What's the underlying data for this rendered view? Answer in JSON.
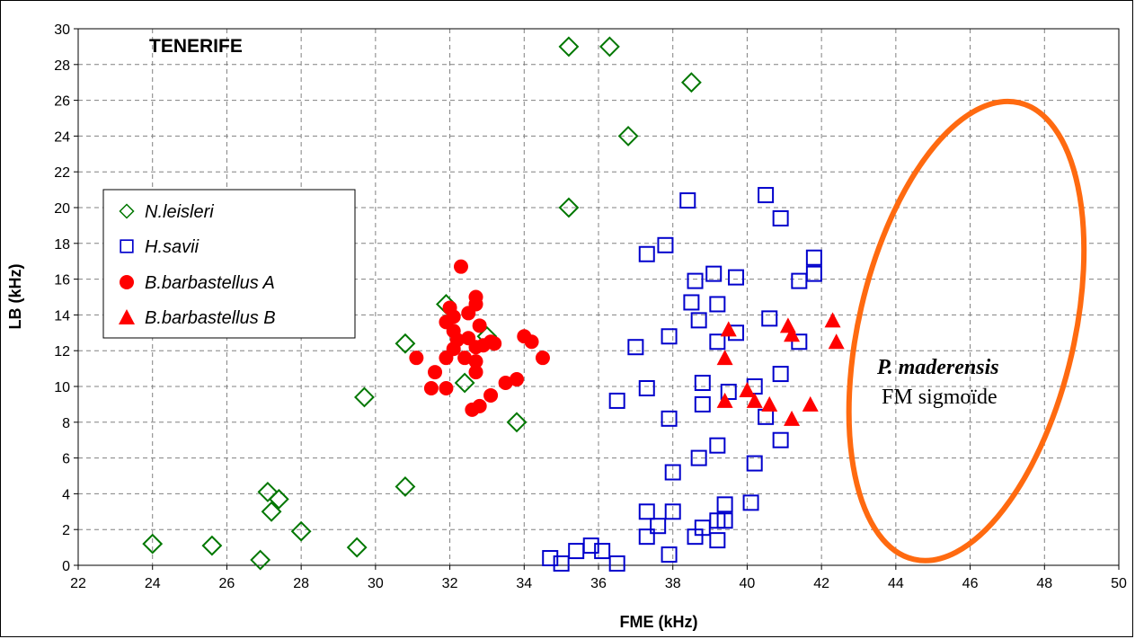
{
  "chart_data": {
    "type": "scatter",
    "title": "TENERIFE",
    "xlabel": "FME (kHz)",
    "ylabel": "LB (kHz)",
    "xlim": [
      22,
      50
    ],
    "ylim": [
      0,
      30
    ],
    "x_ticks": [
      22,
      24,
      26,
      28,
      30,
      32,
      34,
      36,
      38,
      40,
      42,
      44,
      46,
      48,
      50
    ],
    "y_ticks": [
      0,
      2,
      4,
      6,
      8,
      10,
      12,
      14,
      16,
      18,
      20,
      22,
      24,
      26,
      28,
      30
    ],
    "grid": true,
    "legend_position": "left",
    "series": [
      {
        "name": "N.leisleri",
        "marker": "diamond-open",
        "color": "#007700",
        "points": [
          [
            24.0,
            1.2
          ],
          [
            25.6,
            1.1
          ],
          [
            26.9,
            0.3
          ],
          [
            27.1,
            4.1
          ],
          [
            27.2,
            3.0
          ],
          [
            27.4,
            3.7
          ],
          [
            28.0,
            1.9
          ],
          [
            29.5,
            1.0
          ],
          [
            29.7,
            9.4
          ],
          [
            30.8,
            12.4
          ],
          [
            30.8,
            4.4
          ],
          [
            31.9,
            14.6
          ],
          [
            32.4,
            10.2
          ],
          [
            33.8,
            8.0
          ],
          [
            35.2,
            29.0
          ],
          [
            36.3,
            29.0
          ],
          [
            38.5,
            27.0
          ],
          [
            36.8,
            24.0
          ],
          [
            35.2,
            20.0
          ],
          [
            33.0,
            12.8
          ]
        ]
      },
      {
        "name": "H.savii",
        "marker": "square-open",
        "color": "#0000cc",
        "points": [
          [
            34.7,
            0.4
          ],
          [
            35.0,
            0.1
          ],
          [
            35.4,
            0.8
          ],
          [
            35.8,
            1.1
          ],
          [
            36.1,
            0.8
          ],
          [
            36.5,
            0.1
          ],
          [
            36.5,
            9.2
          ],
          [
            37.0,
            12.2
          ],
          [
            37.3,
            17.4
          ],
          [
            37.3,
            9.9
          ],
          [
            37.3,
            3.0
          ],
          [
            37.3,
            1.6
          ],
          [
            37.6,
            2.2
          ],
          [
            37.8,
            17.9
          ],
          [
            37.9,
            12.8
          ],
          [
            37.9,
            8.2
          ],
          [
            37.9,
            0.6
          ],
          [
            38.0,
            5.2
          ],
          [
            38.0,
            3.0
          ],
          [
            38.4,
            20.4
          ],
          [
            38.5,
            14.7
          ],
          [
            38.6,
            15.9
          ],
          [
            38.7,
            13.7
          ],
          [
            38.7,
            6.0
          ],
          [
            38.6,
            1.6
          ],
          [
            38.8,
            10.2
          ],
          [
            38.8,
            9.0
          ],
          [
            38.8,
            2.1
          ],
          [
            39.1,
            16.3
          ],
          [
            39.2,
            14.6
          ],
          [
            39.2,
            12.5
          ],
          [
            39.2,
            6.7
          ],
          [
            39.2,
            2.5
          ],
          [
            39.2,
            1.4
          ],
          [
            39.4,
            3.4
          ],
          [
            39.4,
            2.5
          ],
          [
            39.5,
            9.7
          ],
          [
            39.7,
            16.1
          ],
          [
            39.7,
            13.0
          ],
          [
            40.1,
            3.5
          ],
          [
            40.2,
            10.0
          ],
          [
            40.2,
            5.7
          ],
          [
            40.5,
            20.7
          ],
          [
            40.5,
            8.3
          ],
          [
            40.6,
            13.8
          ],
          [
            40.9,
            19.4
          ],
          [
            40.9,
            10.7
          ],
          [
            40.9,
            7.0
          ],
          [
            41.4,
            15.9
          ],
          [
            41.4,
            12.5
          ],
          [
            41.8,
            17.2
          ],
          [
            41.8,
            16.3
          ]
        ]
      },
      {
        "name": "B.barbastellus A",
        "marker": "circle-filled",
        "color": "#ff0000",
        "points": [
          [
            31.1,
            11.6
          ],
          [
            31.5,
            9.9
          ],
          [
            31.6,
            10.8
          ],
          [
            31.9,
            13.6
          ],
          [
            31.9,
            11.6
          ],
          [
            31.9,
            9.9
          ],
          [
            32.0,
            14.4
          ],
          [
            32.1,
            13.9
          ],
          [
            32.1,
            13.1
          ],
          [
            32.1,
            12.1
          ],
          [
            32.2,
            12.6
          ],
          [
            32.3,
            16.7
          ],
          [
            32.4,
            11.6
          ],
          [
            32.5,
            12.7
          ],
          [
            32.5,
            14.1
          ],
          [
            32.6,
            8.7
          ],
          [
            32.7,
            15.0
          ],
          [
            32.7,
            14.6
          ],
          [
            32.7,
            12.2
          ],
          [
            32.7,
            11.4
          ],
          [
            32.7,
            10.8
          ],
          [
            32.8,
            8.9
          ],
          [
            32.8,
            13.4
          ],
          [
            32.9,
            12.3
          ],
          [
            33.1,
            12.5
          ],
          [
            33.1,
            9.5
          ],
          [
            33.2,
            12.4
          ],
          [
            33.5,
            10.2
          ],
          [
            33.8,
            10.4
          ],
          [
            34.0,
            12.8
          ],
          [
            34.2,
            12.5
          ],
          [
            34.5,
            11.6
          ]
        ]
      },
      {
        "name": "B.barbastellus B",
        "marker": "triangle-filled",
        "color": "#ff0000",
        "points": [
          [
            39.4,
            11.6
          ],
          [
            39.4,
            9.2
          ],
          [
            39.5,
            13.2
          ],
          [
            40.0,
            9.8
          ],
          [
            40.2,
            9.2
          ],
          [
            40.6,
            9.0
          ],
          [
            41.1,
            13.4
          ],
          [
            41.2,
            12.9
          ],
          [
            41.2,
            8.2
          ],
          [
            41.7,
            9.0
          ],
          [
            42.3,
            13.7
          ],
          [
            42.4,
            12.5
          ]
        ]
      }
    ],
    "annotations": [
      {
        "text_bold": "P. maderensis",
        "text": "FM sigmoïde",
        "shape": "ellipse",
        "color": "#ff6a10",
        "center": [
          45.9,
          13.1
        ],
        "radius_x": 2.9,
        "radius_y": 13.1,
        "rotation_deg": 13
      }
    ]
  }
}
